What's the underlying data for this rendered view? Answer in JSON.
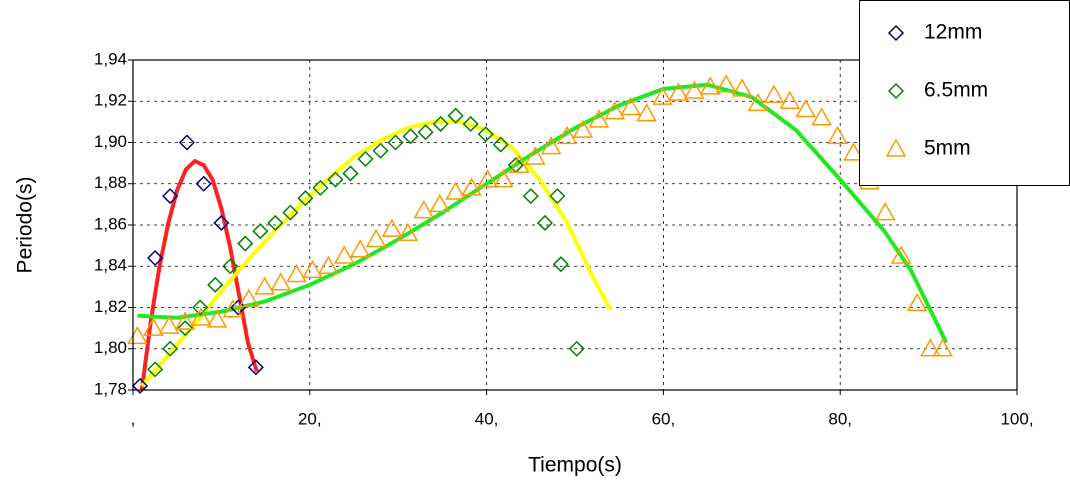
{
  "chart_data": {
    "type": "scatter",
    "x_label": "Tiempo(s)",
    "y_label": "Periodo(s)",
    "xlim": [
      0,
      100
    ],
    "ylim": [
      1.78,
      1.94
    ],
    "xticks": [
      {
        "value": 0,
        "label": ","
      },
      {
        "value": 20,
        "label": "20,"
      },
      {
        "value": 40,
        "label": "40,"
      },
      {
        "value": 60,
        "label": "60,"
      },
      {
        "value": 80,
        "label": "80,"
      },
      {
        "value": 100,
        "label": "100,"
      }
    ],
    "yticks": [
      {
        "value": 1.78,
        "label": "1,78"
      },
      {
        "value": 1.8,
        "label": "1,80"
      },
      {
        "value": 1.82,
        "label": "1,82"
      },
      {
        "value": 1.84,
        "label": "1,84"
      },
      {
        "value": 1.86,
        "label": "1,86"
      },
      {
        "value": 1.88,
        "label": "1,88"
      },
      {
        "value": 1.9,
        "label": "1,90"
      },
      {
        "value": 1.92,
        "label": "1,92"
      },
      {
        "value": 1.94,
        "label": "1,94"
      }
    ],
    "grid": true,
    "legend": "upper right",
    "series": [
      {
        "name": "12mm",
        "color": "#000080",
        "marker": "diamond",
        "x": [
          0.8,
          2.5,
          4.2,
          6.1,
          8.0,
          10.0,
          11.9,
          13.9
        ],
        "values": [
          1.782,
          1.844,
          1.874,
          1.9,
          1.88,
          1.861,
          1.82,
          1.791
        ]
      },
      {
        "name": "6.5mm",
        "color": "#008000",
        "marker": "diamond",
        "x": [
          2.5,
          4.2,
          5.9,
          7.6,
          9.3,
          11.0,
          12.7,
          14.4,
          16.1,
          17.8,
          19.5,
          21.2,
          22.9,
          24.6,
          26.3,
          28.0,
          29.7,
          31.4,
          33.1,
          34.8,
          36.5,
          38.2,
          39.9,
          41.6,
          43.3,
          45.0,
          46.6,
          48.0,
          48.4,
          50.2
        ],
        "values": [
          1.79,
          1.8,
          1.81,
          1.82,
          1.831,
          1.84,
          1.851,
          1.857,
          1.861,
          1.866,
          1.873,
          1.878,
          1.882,
          1.885,
          1.892,
          1.896,
          1.9,
          1.903,
          1.905,
          1.909,
          1.913,
          1.909,
          1.904,
          1.899,
          1.889,
          1.874,
          1.861,
          1.874,
          1.841,
          1.8
        ]
      },
      {
        "name": "5mm",
        "color": "#ff9900",
        "marker": "triangle",
        "x": [
          0.5,
          2.3,
          4.1,
          5.9,
          7.7,
          9.5,
          11.3,
          13.1,
          14.9,
          16.7,
          18.5,
          20.3,
          22.1,
          23.9,
          25.7,
          27.5,
          29.3,
          31.1,
          32.9,
          34.7,
          36.5,
          38.3,
          40.1,
          41.9,
          43.7,
          45.5,
          47.3,
          49.1,
          50.9,
          52.7,
          54.5,
          56.3,
          58.1,
          59.9,
          61.7,
          63.5,
          65.3,
          67.1,
          68.9,
          70.7,
          72.5,
          74.3,
          76.1,
          77.9,
          79.7,
          81.5,
          83.3,
          85.1,
          86.9,
          88.7,
          90.2,
          91.6
        ],
        "values": [
          1.806,
          1.81,
          1.811,
          1.813,
          1.815,
          1.814,
          1.819,
          1.824,
          1.83,
          1.832,
          1.836,
          1.838,
          1.84,
          1.845,
          1.848,
          1.853,
          1.858,
          1.856,
          1.867,
          1.87,
          1.876,
          1.878,
          1.882,
          1.882,
          1.889,
          1.893,
          1.898,
          1.903,
          1.906,
          1.911,
          1.915,
          1.917,
          1.914,
          1.922,
          1.924,
          1.925,
          1.927,
          1.928,
          1.926,
          1.919,
          1.923,
          1.92,
          1.916,
          1.912,
          1.903,
          1.895,
          1.881,
          1.866,
          1.845,
          1.822,
          1.8,
          1.8
        ]
      }
    ],
    "trendlines": [
      {
        "color": "#ff2020",
        "x": [
          1,
          2,
          3,
          4,
          5,
          6,
          7,
          8,
          9,
          10,
          11,
          12,
          13,
          14
        ],
        "values": [
          1.78,
          1.813,
          1.84,
          1.861,
          1.877,
          1.887,
          1.891,
          1.889,
          1.882,
          1.868,
          1.849,
          1.826,
          1.803,
          1.789
        ]
      },
      {
        "color": "#ffff00",
        "x": [
          1,
          4,
          7,
          10,
          13,
          16,
          19,
          22,
          25,
          28,
          31,
          34,
          37,
          40,
          43,
          46,
          49,
          52,
          54
        ],
        "values": [
          1.782,
          1.797,
          1.812,
          1.828,
          1.843,
          1.857,
          1.87,
          1.882,
          1.893,
          1.901,
          1.907,
          1.91,
          1.91,
          1.906,
          1.897,
          1.882,
          1.862,
          1.835,
          1.819
        ]
      },
      {
        "color": "#22e822",
        "x": [
          0.5,
          5,
          10,
          15,
          20,
          25,
          30,
          35,
          40,
          45,
          50,
          55,
          60,
          65,
          70,
          75,
          80,
          85,
          88,
          92
        ],
        "values": [
          1.816,
          1.815,
          1.818,
          1.823,
          1.831,
          1.841,
          1.853,
          1.866,
          1.88,
          1.894,
          1.907,
          1.918,
          1.926,
          1.928,
          1.922,
          1.906,
          1.882,
          1.857,
          1.838,
          1.803
        ]
      }
    ]
  }
}
